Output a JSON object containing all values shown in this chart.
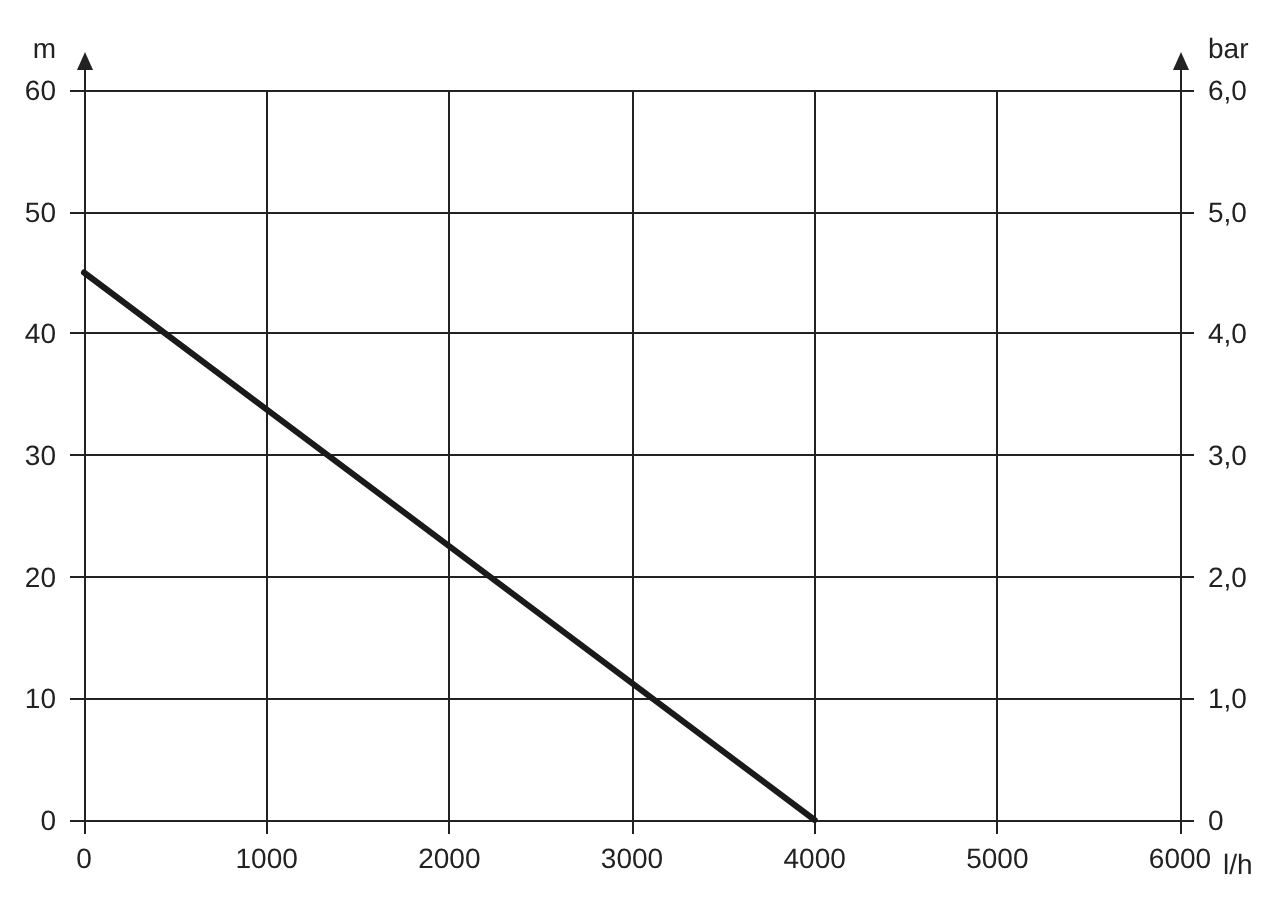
{
  "chart_data": {
    "type": "line",
    "xlabel": "l/h",
    "ylabel": "m",
    "y2label": "bar",
    "x": [
      0,
      4000
    ],
    "series": [
      {
        "color": "#1a1a1a",
        "values": [
          45,
          0
        ]
      }
    ],
    "xlim": [
      0,
      6000
    ],
    "xticks": [
      0,
      1000,
      2000,
      3000,
      4000,
      5000,
      6000
    ],
    "ylim": [
      0,
      60
    ],
    "yticks": [
      0,
      10,
      20,
      30,
      40,
      50,
      60
    ],
    "y2lim": [
      0,
      6
    ],
    "y2ticks": [
      0,
      {
        "value": 1,
        "label": "1,0"
      },
      {
        "value": 2,
        "label": "2,0"
      },
      {
        "value": 3,
        "label": "3,0"
      },
      {
        "value": 4,
        "label": "4,0"
      },
      {
        "value": 5,
        "label": "5,0"
      },
      {
        "value": 6,
        "label": "6,0"
      }
    ],
    "grid": true,
    "marker": "none",
    "line_style": "solid"
  }
}
